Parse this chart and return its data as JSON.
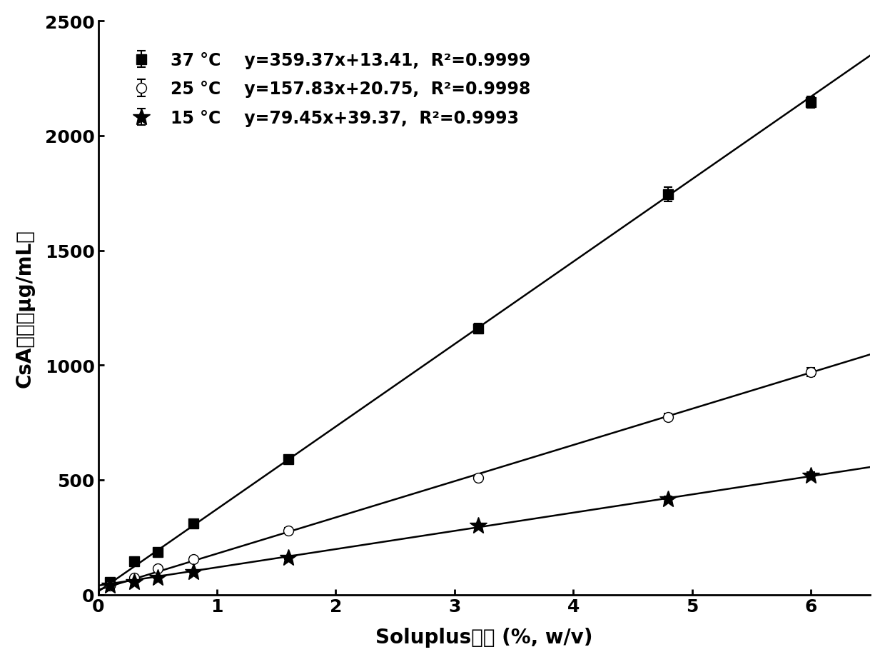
{
  "series": [
    {
      "label": "37 °C",
      "eq_left": "y=359.37x+13.41,",
      "eq_right": "R²=0.9999",
      "slope": 359.37,
      "intercept": 13.41,
      "marker": "s",
      "color": "#000000",
      "x_data": [
        0.1,
        0.3,
        0.5,
        0.8,
        1.6,
        3.2,
        4.8,
        6.0
      ],
      "y_data": [
        55,
        145,
        185,
        310,
        590,
        1160,
        1745,
        2145
      ],
      "yerr": [
        5,
        8,
        8,
        12,
        15,
        20,
        30,
        25
      ],
      "mfc": "#000000",
      "mec": "#000000"
    },
    {
      "label": "25 °C",
      "eq_left": "y=157.83x+20.75,",
      "eq_right": "R²=0.9998",
      "slope": 157.83,
      "intercept": 20.75,
      "marker": "o",
      "color": "#000000",
      "x_data": [
        0.1,
        0.3,
        0.5,
        0.8,
        1.6,
        3.2,
        4.8,
        6.0
      ],
      "y_data": [
        40,
        75,
        115,
        155,
        280,
        510,
        775,
        970
      ],
      "yerr": [
        3,
        5,
        5,
        8,
        10,
        12,
        15,
        18
      ],
      "mfc": "#ffffff",
      "mec": "#000000"
    },
    {
      "label": "15 °C",
      "eq_left": "y=79.45x+39.37,",
      "eq_right": "R²=0.9993",
      "slope": 79.45,
      "intercept": 39.37,
      "marker": "*",
      "color": "#000000",
      "x_data": [
        0.1,
        0.3,
        0.5,
        0.8,
        1.6,
        3.2,
        4.8,
        6.0
      ],
      "y_data": [
        38,
        55,
        75,
        100,
        160,
        300,
        415,
        520
      ],
      "yerr": [
        2,
        3,
        4,
        5,
        7,
        10,
        12,
        14
      ],
      "mfc": "#000000",
      "mec": "#000000"
    }
  ],
  "xlabel_ascii": "Soluplus",
  "xlabel_cjk": "浓度 (%, w/v)",
  "ylabel_ascii": "CsA",
  "ylabel_cjk": "浓度（μg/mL）",
  "xlim": [
    0,
    6.5
  ],
  "ylim": [
    0,
    2500
  ],
  "xticks": [
    0,
    1,
    2,
    3,
    4,
    5,
    6
  ],
  "yticks": [
    0,
    500,
    1000,
    1500,
    2000,
    2500
  ],
  "background_color": "#ffffff",
  "fit_line_x_end": 6.5,
  "marker_sizes": {
    "s": 10,
    "o": 10,
    "*": 18
  }
}
